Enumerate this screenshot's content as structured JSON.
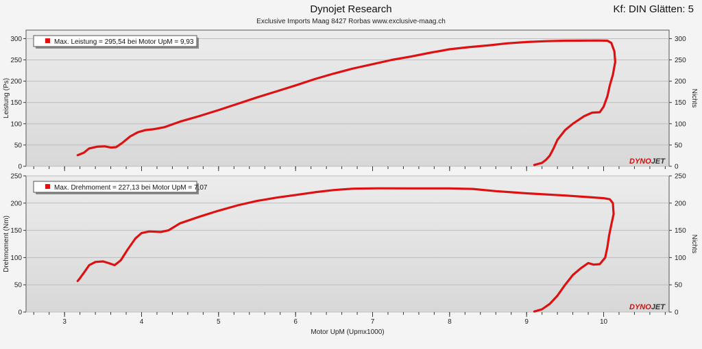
{
  "header": {
    "title": "Dynojet Research",
    "subtitle": "Exclusive Imports Maag  8427 Rorbas  www.exclusive-maag.ch",
    "smoothing": "Kf: DIN Glätten: 5"
  },
  "logo_text": {
    "a": "DYNO",
    "b": "JET"
  },
  "colors": {
    "curve": "#dd1111",
    "background": "#f4f4f4",
    "panel": "#d8d8d8"
  },
  "chart_data": [
    {
      "type": "line",
      "ylabel": "Leistung (Ps)",
      "ylabel_right": "Nichts",
      "legend": "Max. Leistung = 295,54 bei Motor UpM = 9,93",
      "xlim": [
        2.5,
        10.85
      ],
      "ylim": [
        0,
        320
      ],
      "yticks": [
        0,
        50,
        100,
        150,
        200,
        250,
        300
      ],
      "series": [
        {
          "values": [
            [
              3.17,
              26
            ],
            [
              3.25,
              32
            ],
            [
              3.32,
              42
            ],
            [
              3.42,
              46
            ],
            [
              3.52,
              47
            ],
            [
              3.6,
              44
            ],
            [
              3.67,
              45
            ],
            [
              3.75,
              55
            ],
            [
              3.85,
              70
            ],
            [
              3.95,
              80
            ],
            [
              4.05,
              85
            ],
            [
              4.15,
              87
            ],
            [
              4.3,
              92
            ],
            [
              4.5,
              105
            ],
            [
              4.75,
              118
            ],
            [
              5.0,
              132
            ],
            [
              5.25,
              147
            ],
            [
              5.5,
              162
            ],
            [
              5.75,
              176
            ],
            [
              6.0,
              190
            ],
            [
              6.25,
              205
            ],
            [
              6.5,
              218
            ],
            [
              6.75,
              230
            ],
            [
              7.0,
              240
            ],
            [
              7.25,
              250
            ],
            [
              7.5,
              258
            ],
            [
              7.75,
              267
            ],
            [
              8.0,
              275
            ],
            [
              8.25,
              280
            ],
            [
              8.5,
              284
            ],
            [
              8.75,
              289
            ],
            [
              9.0,
              292
            ],
            [
              9.25,
              294
            ],
            [
              9.5,
              295
            ],
            [
              9.7,
              295.3
            ],
            [
              9.93,
              295.54
            ],
            [
              10.05,
              295
            ],
            [
              10.1,
              290
            ],
            [
              10.14,
              270
            ],
            [
              10.15,
              245
            ],
            [
              10.12,
              215
            ],
            [
              10.08,
              190
            ],
            [
              10.05,
              165
            ],
            [
              10.0,
              140
            ],
            [
              9.95,
              127
            ],
            [
              9.85,
              126
            ],
            [
              9.75,
              118
            ],
            [
              9.6,
              100
            ],
            [
              9.5,
              85
            ],
            [
              9.4,
              62
            ],
            [
              9.35,
              42
            ],
            [
              9.3,
              25
            ],
            [
              9.25,
              15
            ],
            [
              9.2,
              8
            ],
            [
              9.1,
              3
            ]
          ]
        }
      ]
    },
    {
      "type": "line",
      "ylabel": "Drehmoment (Nm)",
      "ylabel_right": "Nichts",
      "xlabel": "Motor UpM (Upmx1000)",
      "legend": "Max. Drehmoment = 227,13 bei Motor UpM = 7,07",
      "xlim": [
        2.5,
        10.85
      ],
      "ylim": [
        0,
        250
      ],
      "yticks": [
        0,
        50,
        100,
        150,
        200,
        250
      ],
      "xticks": [
        3,
        4,
        5,
        6,
        7,
        8,
        9,
        10
      ],
      "series": [
        {
          "values": [
            [
              3.17,
              57
            ],
            [
              3.2,
              62
            ],
            [
              3.25,
              72
            ],
            [
              3.32,
              86
            ],
            [
              3.4,
              92
            ],
            [
              3.5,
              93
            ],
            [
              3.57,
              90
            ],
            [
              3.65,
              86
            ],
            [
              3.73,
              95
            ],
            [
              3.82,
              115
            ],
            [
              3.92,
              135
            ],
            [
              4.0,
              145
            ],
            [
              4.1,
              148
            ],
            [
              4.25,
              147
            ],
            [
              4.35,
              150
            ],
            [
              4.5,
              163
            ],
            [
              4.75,
              175
            ],
            [
              5.0,
              186
            ],
            [
              5.25,
              196
            ],
            [
              5.5,
              204
            ],
            [
              5.75,
              210
            ],
            [
              6.0,
              215
            ],
            [
              6.25,
              220
            ],
            [
              6.5,
              224
            ],
            [
              6.75,
              226.5
            ],
            [
              7.07,
              227.13
            ],
            [
              7.5,
              227
            ],
            [
              8.0,
              227
            ],
            [
              8.3,
              226
            ],
            [
              8.6,
              222
            ],
            [
              9.0,
              218
            ],
            [
              9.5,
              214
            ],
            [
              9.8,
              211
            ],
            [
              10.0,
              209
            ],
            [
              10.08,
              207
            ],
            [
              10.12,
              200
            ],
            [
              10.13,
              180
            ],
            [
              10.1,
              160
            ],
            [
              10.07,
              140
            ],
            [
              10.05,
              120
            ],
            [
              10.02,
              100
            ],
            [
              9.95,
              88
            ],
            [
              9.87,
              87
            ],
            [
              9.8,
              90
            ],
            [
              9.7,
              80
            ],
            [
              9.6,
              68
            ],
            [
              9.5,
              50
            ],
            [
              9.4,
              30
            ],
            [
              9.3,
              15
            ],
            [
              9.2,
              5
            ],
            [
              9.1,
              1
            ]
          ]
        }
      ]
    }
  ]
}
